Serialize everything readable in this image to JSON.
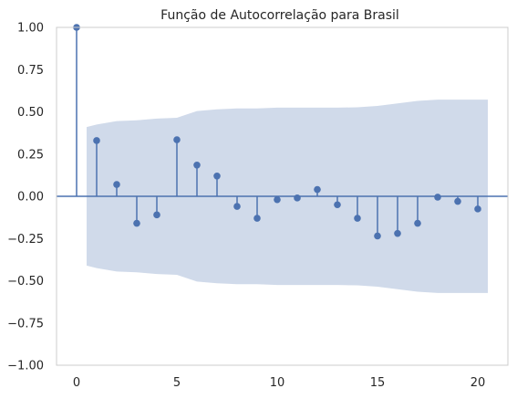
{
  "chart_data": {
    "type": "scatter",
    "subtype": "stem",
    "title": "Função de Autocorrelação para Brasil",
    "xlabel": "",
    "ylabel": "",
    "xlim": [
      -1,
      21.5
    ],
    "ylim": [
      -1,
      1
    ],
    "x_ticks": [
      0,
      5,
      10,
      15,
      20
    ],
    "x_tick_labels": [
      "0",
      "5",
      "10",
      "15",
      "20"
    ],
    "y_ticks": [
      -1,
      -0.75,
      -0.5,
      -0.25,
      0,
      0.25,
      0.5,
      0.75,
      1
    ],
    "y_tick_labels": [
      "−1.00",
      "−0.75",
      "−0.50",
      "−0.25",
      "0.00",
      "0.25",
      "0.50",
      "0.75",
      "1.00"
    ],
    "grid": false,
    "lags": [
      0,
      1,
      2,
      3,
      4,
      5,
      6,
      7,
      8,
      9,
      10,
      11,
      12,
      13,
      14,
      15,
      16,
      17,
      18,
      19,
      20
    ],
    "values": [
      1.0,
      0.33,
      0.07,
      -0.16,
      -0.11,
      0.335,
      0.185,
      0.12,
      -0.06,
      -0.13,
      -0.02,
      -0.01,
      0.04,
      -0.05,
      -0.13,
      -0.235,
      -0.22,
      -0.16,
      -0.005,
      -0.03,
      -0.075
    ],
    "confidence_band": {
      "x": [
        0.5,
        1,
        2,
        3,
        4,
        5,
        6,
        7,
        8,
        9,
        10,
        11,
        12,
        13,
        14,
        15,
        16,
        17,
        18,
        19,
        20,
        20.5
      ],
      "upper": [
        0.41,
        0.425,
        0.445,
        0.45,
        0.46,
        0.465,
        0.505,
        0.515,
        0.52,
        0.52,
        0.525,
        0.525,
        0.525,
        0.525,
        0.527,
        0.535,
        0.55,
        0.565,
        0.572,
        0.572,
        0.572,
        0.572
      ]
    }
  },
  "colors": {
    "stem": "#4c72b0",
    "band": "#d0daea",
    "axes_edge": "#cccccc",
    "text": "#262626"
  }
}
